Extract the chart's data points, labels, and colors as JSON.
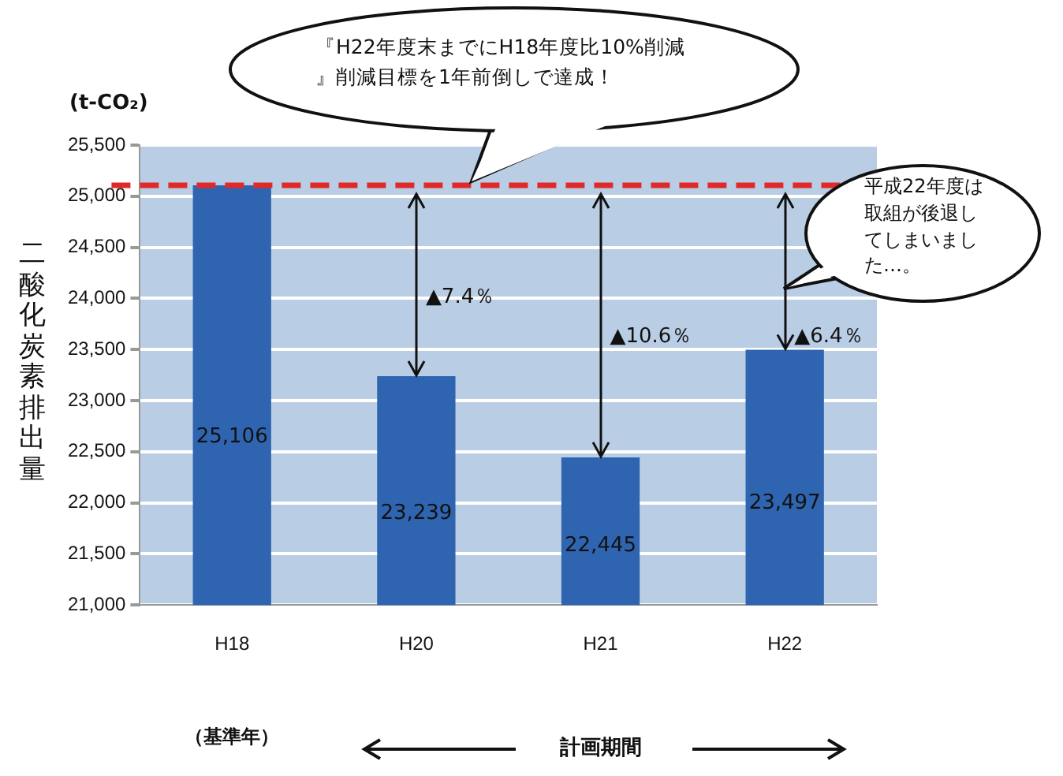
{
  "chart_data": {
    "type": "bar",
    "ylabel": "二酸化炭素排出量",
    "categories": [
      "H18",
      "H20",
      "H21",
      "H22"
    ],
    "values": [
      25106,
      23239,
      22445,
      23497
    ],
    "color": "#2f65b0",
    "value_labels": [
      "25,106",
      "23,239",
      "22,445",
      "23,497"
    ],
    "ylim": [
      21000,
      25500
    ],
    "yticks": [
      {
        "value": 21000,
        "label": "21,000"
      },
      {
        "value": 21500,
        "label": "21,500"
      },
      {
        "value": 22000,
        "label": "22,000"
      },
      {
        "value": 22500,
        "label": "22,500"
      },
      {
        "value": 23000,
        "label": "23,000"
      },
      {
        "value": 23500,
        "label": "23,500"
      },
      {
        "value": 24000,
        "label": "24,000"
      },
      {
        "value": 24500,
        "label": "24,500"
      },
      {
        "value": 25000,
        "label": "25,000"
      },
      {
        "value": 25500,
        "label": "25,500"
      }
    ],
    "grid": "y",
    "legend": false,
    "ref_lines": [
      {
        "axis": "y",
        "value": 25106,
        "label": null,
        "color": "#e02a2a",
        "line_style": "dashed"
      }
    ],
    "annotations": [
      "『H22年度末までにH18年度比10%削減』削減目標を1年前倒しで達成！",
      "平成22年度は取組が後退してしまいました…。",
      "(t-CO₂)",
      "（基準年）",
      "計画期間",
      "▲7.4％",
      "▲10.6％",
      "▲6.4％"
    ]
  }
}
